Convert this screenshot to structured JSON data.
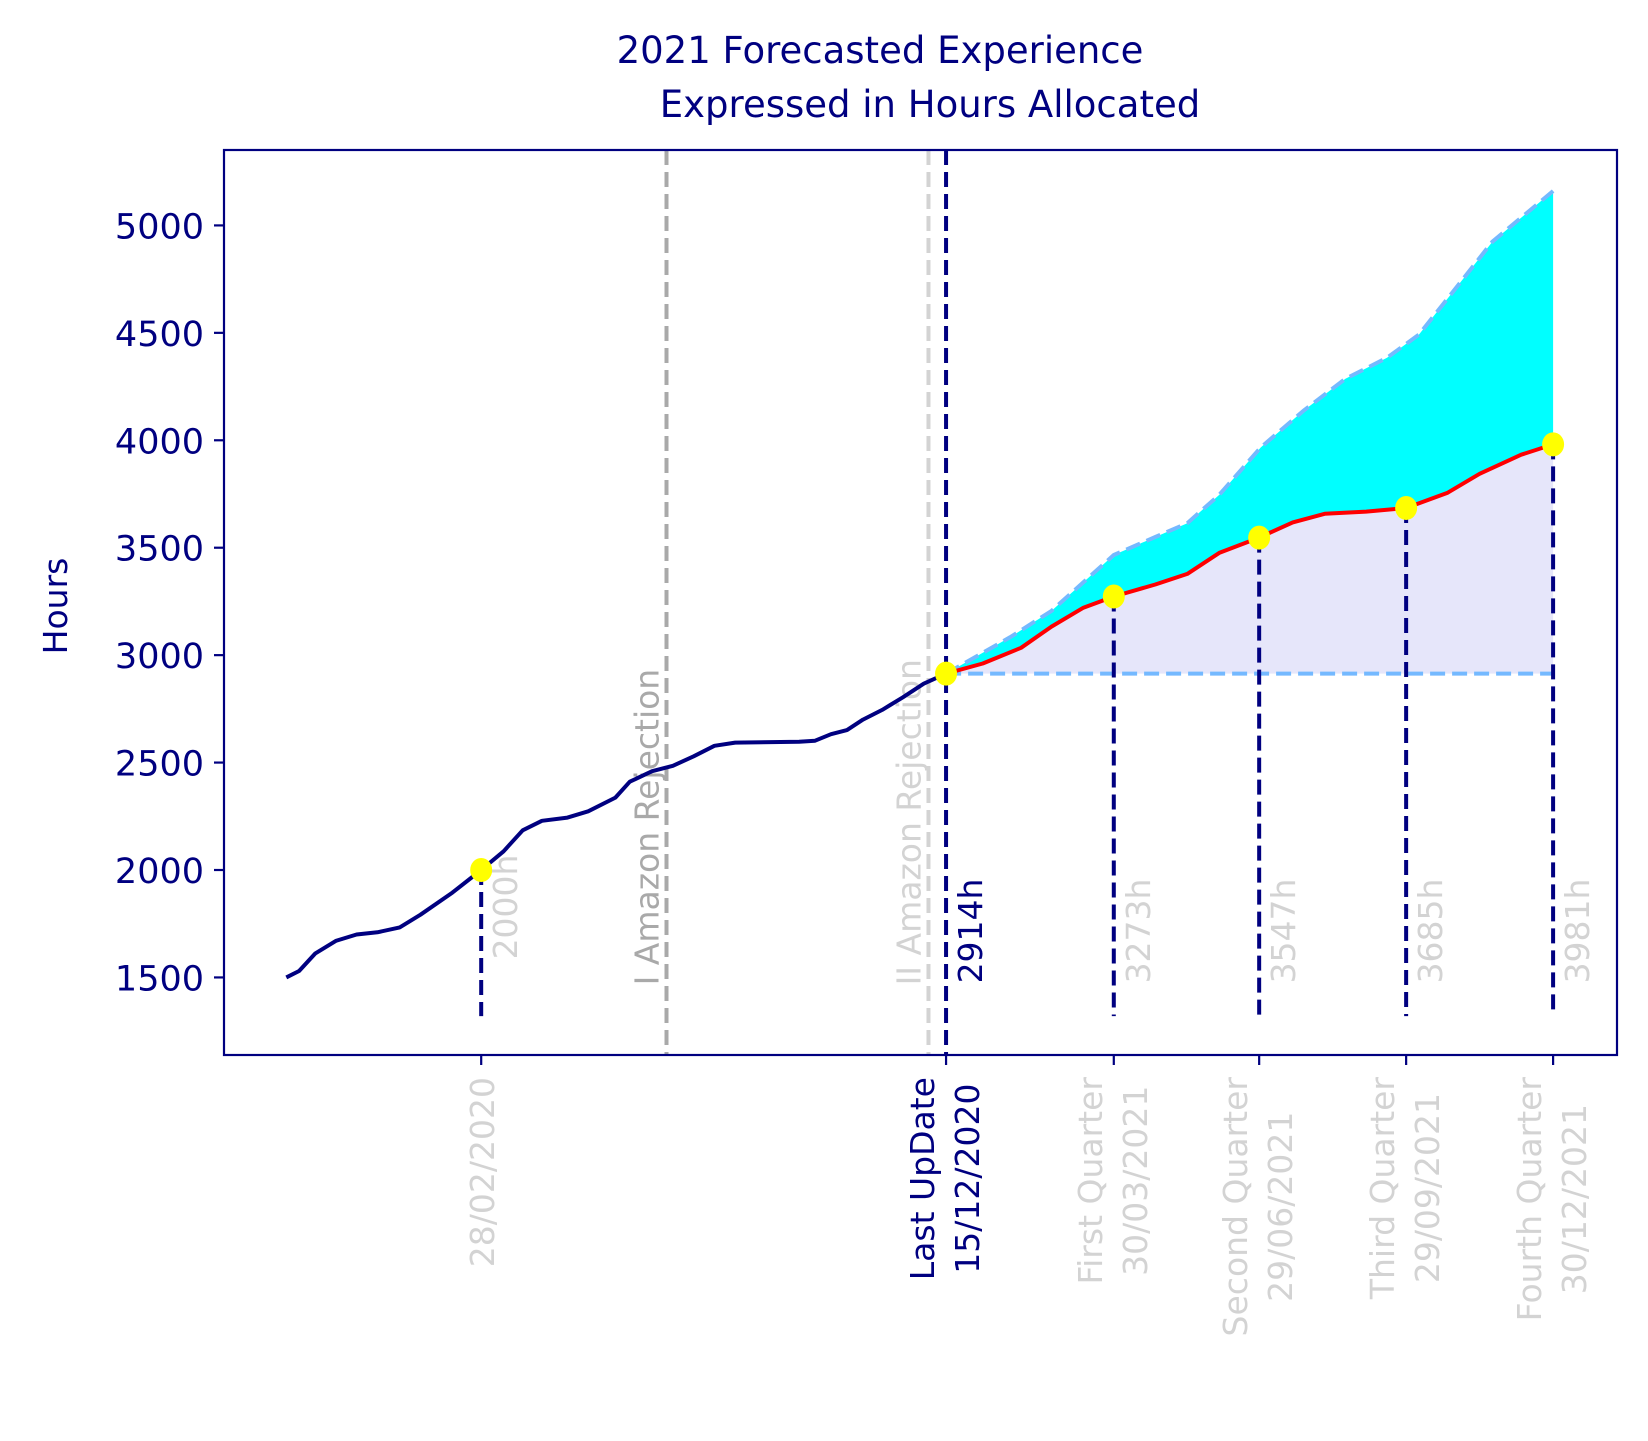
{
  "chart_data": {
    "type": "line",
    "title": "2021 Forecasted Experience\nExpressed in Hours Allocated",
    "title_lines": [
      "2021 Forecasted Experience",
      "Expressed in Hours Allocated"
    ],
    "xlabel": "",
    "ylabel": "Hours",
    "xlim": [
      "2019-09-20",
      "2022-02-08"
    ],
    "ylim": [
      1139,
      5351
    ],
    "yticks": [
      1500,
      2000,
      2500,
      3000,
      3500,
      4000,
      4500,
      5000
    ],
    "grid": false,
    "colors": {
      "axes": "#000080",
      "history": "#000080",
      "forecast": "#ff0000",
      "upper_bound": "#74b9ff",
      "baseline": "#74b9ff",
      "fill_lower": "#e6e6fa",
      "fill_upper": "#00ffff",
      "markers": "#ffff00",
      "muted_text": "#d3d3d3",
      "first_rejection": "#a9a9a9",
      "second_rejection": "#d3d3d3"
    },
    "xticks": [
      {
        "date": "2020-02-28",
        "lines": [
          "28/02/2020"
        ],
        "color": "#d3d3d3"
      },
      {
        "date": "2020-12-15",
        "lines": [
          "Last UpDate",
          "15/12/2020"
        ],
        "color": "#000080"
      },
      {
        "date": "2021-03-30",
        "lines": [
          "First Quarter",
          "30/03/2021"
        ],
        "color": "#d3d3d3"
      },
      {
        "date": "2021-06-29",
        "lines": [
          "Second Quarter",
          "29/06/2021"
        ],
        "color": "#d3d3d3"
      },
      {
        "date": "2021-09-29",
        "lines": [
          "Third Quarter",
          "29/09/2021"
        ],
        "color": "#d3d3d3"
      },
      {
        "date": "2021-12-30",
        "lines": [
          "Fourth Quarter",
          "30/12/2021"
        ],
        "color": "#d3d3d3"
      }
    ],
    "events": [
      {
        "date": "2020-06-23",
        "label": "I Amazon Rejection",
        "color": "#a9a9a9"
      },
      {
        "date": "2020-12-04",
        "label": "II Amazon Rejection",
        "color": "#d3d3d3"
      }
    ],
    "series": [
      {
        "key": "history",
        "x": [
          "2019-10-29",
          "2019-11-06",
          "2019-11-16",
          "2019-11-29",
          "2019-12-12",
          "2019-12-25",
          "2020-01-08",
          "2020-01-21",
          "2020-02-10",
          "2020-02-28",
          "2020-03-13",
          "2020-03-25",
          "2020-04-06",
          "2020-04-22",
          "2020-05-05",
          "2020-05-22",
          "2020-05-31",
          "2020-06-14",
          "2020-06-27",
          "2020-07-10",
          "2020-07-23",
          "2020-08-05",
          "2020-09-14",
          "2020-09-24",
          "2020-10-04",
          "2020-10-14",
          "2020-10-24",
          "2020-11-05",
          "2020-11-18",
          "2020-12-01",
          "2020-12-15"
        ],
        "y": [
          1500,
          1530,
          1611,
          1670,
          1700,
          1710,
          1733,
          1792,
          1895,
          2000,
          2087,
          2185,
          2229,
          2244,
          2273,
          2337,
          2411,
          2460,
          2485,
          2529,
          2578,
          2593,
          2597,
          2602,
          2632,
          2651,
          2700,
          2745,
          2804,
          2867,
          2914
        ]
      },
      {
        "key": "forecast",
        "x": [
          "2020-12-15",
          "2021-01-07",
          "2021-01-31",
          "2021-02-19",
          "2021-03-11",
          "2021-03-30",
          "2021-04-25",
          "2021-05-15",
          "2021-06-04",
          "2021-06-29",
          "2021-07-20",
          "2021-08-09",
          "2021-09-04",
          "2021-09-29",
          "2021-10-25",
          "2021-11-14",
          "2021-12-10",
          "2021-12-30"
        ],
        "y": [
          2914,
          2961,
          3034,
          3133,
          3221,
          3273,
          3329,
          3378,
          3476,
          3547,
          3618,
          3658,
          3668,
          3685,
          3756,
          3844,
          3933,
          3981
        ]
      },
      {
        "key": "upper_bound",
        "x": [
          "2020-12-15",
          "2021-01-24",
          "2021-02-19",
          "2021-03-11",
          "2021-03-30",
          "2021-04-25",
          "2021-05-15",
          "2021-06-04",
          "2021-06-30",
          "2021-07-27",
          "2021-08-22",
          "2021-09-17",
          "2021-10-07",
          "2021-10-27",
          "2021-11-22",
          "2021-12-30"
        ],
        "y": [
          2914,
          3083,
          3206,
          3339,
          3466,
          3550,
          3614,
          3746,
          3967,
          4139,
          4286,
          4384,
          4492,
          4679,
          4924,
          5160
        ]
      },
      {
        "key": "baseline",
        "x": [
          "2020-12-15",
          "2021-12-30"
        ],
        "y": [
          2914,
          2914
        ]
      }
    ],
    "milestones": [
      {
        "date": "2020-02-28",
        "hours": 2000,
        "label": "2000h",
        "color": "#d3d3d3"
      },
      {
        "date": "2020-12-15",
        "hours": 2914,
        "label": "2914h",
        "color": "#000080"
      },
      {
        "date": "2021-03-30",
        "hours": 3273,
        "label": "3273h",
        "color": "#d3d3d3"
      },
      {
        "date": "2021-06-29",
        "hours": 3547,
        "label": "3547h",
        "color": "#d3d3d3"
      },
      {
        "date": "2021-09-29",
        "hours": 3685,
        "label": "3685h",
        "color": "#d3d3d3"
      },
      {
        "date": "2021-12-30",
        "hours": 3981,
        "label": "3981h",
        "color": "#d3d3d3"
      }
    ]
  }
}
